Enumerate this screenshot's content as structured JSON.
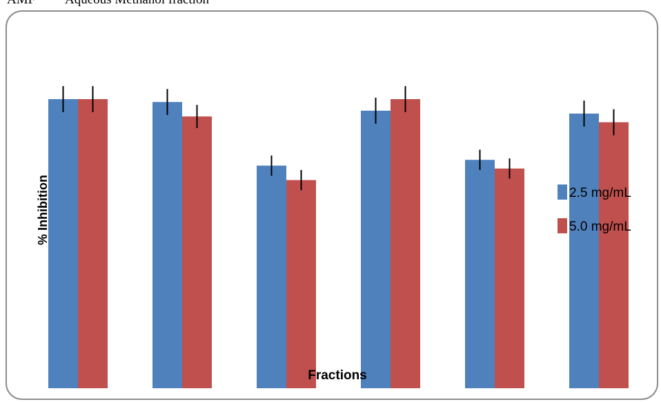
{
  "header": {
    "abbr": "AMF",
    "text": "Aqueous Methanol fraction"
  },
  "colors": {
    "series_1": "#4f81bd",
    "series_2": "#c0504d",
    "error_bar": "#000000",
    "frame": "#8c8c8c"
  },
  "chart_data": {
    "type": "bar",
    "categories": [
      "",
      "",
      "",
      "",
      "",
      ""
    ],
    "series": [
      {
        "name": "2.5 mg/mL",
        "values": [
          100,
          99,
          77,
          96,
          79,
          95
        ],
        "errors": [
          4.5,
          4.5,
          3.5,
          4.5,
          3.5,
          4.5
        ]
      },
      {
        "name": "5.0 mg/mL",
        "values": [
          100,
          94,
          72,
          100,
          76,
          92
        ],
        "errors": [
          4.5,
          4.0,
          3.5,
          4.5,
          3.5,
          4.5
        ]
      }
    ],
    "ylim": [
      0,
      100
    ],
    "xlabel": "Fractions",
    "ylabel": "% Inhibition",
    "title": "",
    "grid": false,
    "legend": "right"
  }
}
